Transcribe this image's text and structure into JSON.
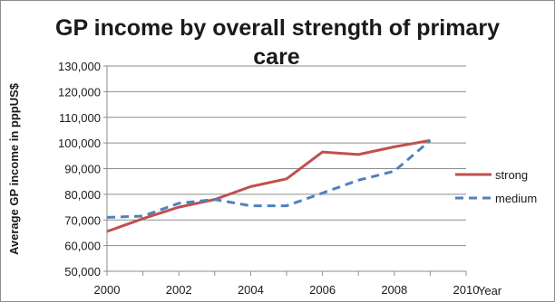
{
  "chart_data": {
    "type": "line",
    "title_line1": "GP income by overall strength of primary",
    "title_line2": "care",
    "xlabel": "Year",
    "ylabel": "Average GP income in  pppUS$",
    "xlim": [
      2000,
      2010
    ],
    "ylim": [
      50000,
      130000
    ],
    "x_ticks": [
      "2000",
      "2002",
      "2004",
      "2006",
      "2008",
      "2010"
    ],
    "x_tick_values": [
      2000,
      2002,
      2004,
      2006,
      2008,
      2010
    ],
    "y_ticks": [
      "50,000",
      "60,000",
      "70,000",
      "80,000",
      "90,000",
      "100,000",
      "110,000",
      "120,000",
      "130,000"
    ],
    "y_tick_values": [
      50000,
      60000,
      70000,
      80000,
      90000,
      100000,
      110000,
      120000,
      130000
    ],
    "grid": true,
    "legend_position": "right",
    "series": [
      {
        "name": "strong",
        "color": "#c0504d",
        "style": "solid",
        "x": [
          2000,
          2001,
          2002,
          2003,
          2004,
          2005,
          2006,
          2007,
          2008,
          2009
        ],
        "y": [
          65500,
          70500,
          75000,
          78000,
          83000,
          86000,
          96500,
          95500,
          98500,
          101000
        ]
      },
      {
        "name": "medium",
        "color": "#4f81bd",
        "style": "dashed",
        "x": [
          2000,
          2001,
          2002,
          2003,
          2004,
          2005,
          2006,
          2007,
          2008,
          2009
        ],
        "y": [
          71000,
          71500,
          76500,
          78000,
          75500,
          75500,
          80500,
          85500,
          89000,
          101000
        ]
      }
    ]
  }
}
